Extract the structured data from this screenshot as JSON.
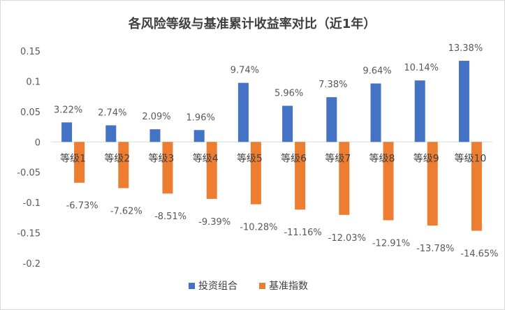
{
  "chart_data": {
    "type": "bar",
    "title": "各风险等级与基准累计收益率对比（近1年）",
    "categories": [
      "等级1",
      "等级2",
      "等级3",
      "等级4",
      "等级5",
      "等级6",
      "等级7",
      "等级8",
      "等级9",
      "等级10"
    ],
    "series": [
      {
        "name": "投资组合",
        "color": "#4472C4",
        "values": [
          0.0322,
          0.0274,
          0.0209,
          0.0196,
          0.0974,
          0.0596,
          0.0738,
          0.0964,
          0.1014,
          0.1338
        ],
        "labels": [
          "3.22%",
          "2.74%",
          "2.09%",
          "1.96%",
          "9.74%",
          "5.96%",
          "7.38%",
          "9.64%",
          "10.14%",
          "13.38%"
        ]
      },
      {
        "name": "基准指数",
        "color": "#ED7D31",
        "values": [
          -0.0673,
          -0.0762,
          -0.0851,
          -0.0939,
          -0.1028,
          -0.1116,
          -0.1203,
          -0.1291,
          -0.1378,
          -0.1465
        ],
        "labels": [
          "-6.73%",
          "-7.62%",
          "-8.51%",
          "-9.39%",
          "-10.28%",
          "-11.16%",
          "-12.03%",
          "-12.91%",
          "-13.78%",
          "-14.65%"
        ]
      }
    ],
    "ylim": [
      -0.2,
      0.15
    ],
    "yticks": [
      0.15,
      0.1,
      0.05,
      0,
      -0.05,
      -0.1,
      -0.15,
      -0.2
    ],
    "ytick_labels": [
      "0.15",
      "0.1",
      "0.05",
      "0",
      "-0.05",
      "-0.1",
      "-0.15",
      "-0.2"
    ],
    "grid": false,
    "legend_position": "bottom"
  }
}
